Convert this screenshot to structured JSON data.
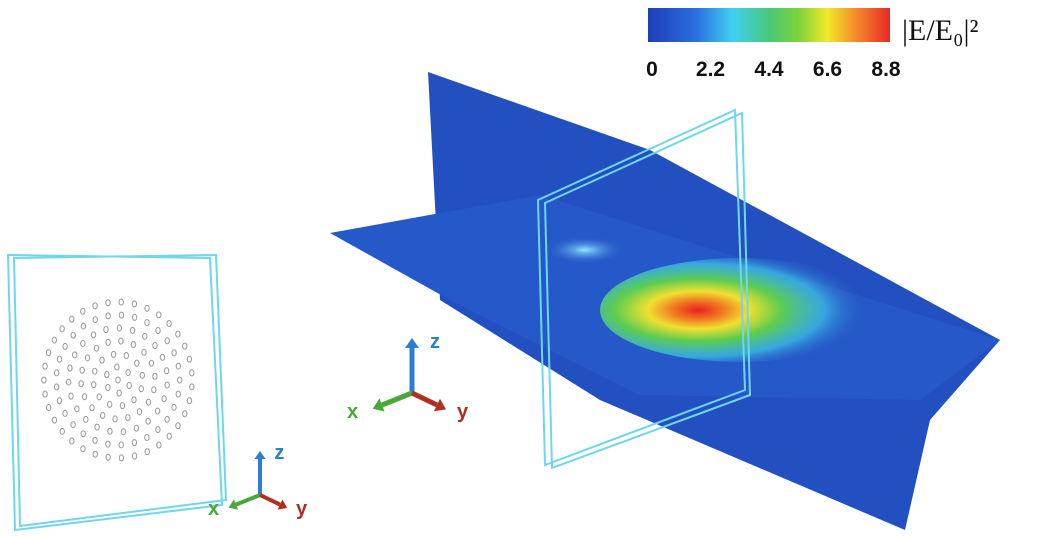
{
  "colorbar": {
    "label": "|E/E₀|²",
    "ticks": [
      0,
      2.2,
      4.4,
      6.6,
      8.8
    ]
  },
  "triads": [
    {
      "z": "z",
      "x": "x",
      "y": "y"
    },
    {
      "z": "z",
      "x": "x",
      "y": "y"
    }
  ]
}
